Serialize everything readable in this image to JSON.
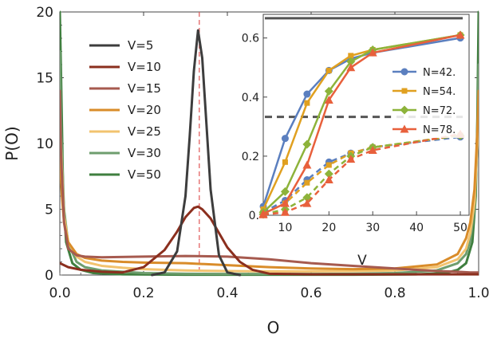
{
  "chart_data": [
    {
      "type": "line",
      "xlabel": "O",
      "ylabel": "P(O)",
      "xlim": [
        0,
        1
      ],
      "ylim": [
        0,
        20
      ],
      "xticks": [
        "0.0",
        "0.2",
        "0.4",
        "0.6",
        "0.8",
        "1.0"
      ],
      "yticks": [
        "0",
        "5",
        "10",
        "15",
        "20"
      ],
      "reference_line": {
        "x": 0.333,
        "style": "dashed",
        "color": "#e05555"
      },
      "legend_position": "top-left",
      "series": [
        {
          "name": "V=5",
          "color": "#3d3d3d",
          "x": [
            0.22,
            0.25,
            0.28,
            0.3,
            0.31,
            0.32,
            0.33,
            0.34,
            0.35,
            0.36,
            0.38,
            0.4,
            0.43
          ],
          "y": [
            0.0,
            0.2,
            1.8,
            6.0,
            10.5,
            15.5,
            18.6,
            16.5,
            11.5,
            6.5,
            1.5,
            0.2,
            0.0
          ]
        },
        {
          "name": "V=10",
          "color": "#8b2f1e",
          "x": [
            0.0,
            0.02,
            0.05,
            0.1,
            0.15,
            0.2,
            0.25,
            0.28,
            0.3,
            0.32,
            0.33,
            0.34,
            0.36,
            0.38,
            0.4,
            0.43,
            0.46,
            0.5,
            0.6,
            0.7,
            0.8,
            0.9,
            1.0
          ],
          "y": [
            0.9,
            0.6,
            0.4,
            0.25,
            0.2,
            0.6,
            1.9,
            3.3,
            4.4,
            5.1,
            5.2,
            5.0,
            4.3,
            3.2,
            2.1,
            1.0,
            0.4,
            0.1,
            0.05,
            0.05,
            0.05,
            0.05,
            0.05
          ]
        },
        {
          "name": "V=15",
          "color": "#a65a4f",
          "x": [
            0.0,
            0.003,
            0.01,
            0.02,
            0.04,
            0.06,
            0.1,
            0.2,
            0.3,
            0.4,
            0.5,
            0.6,
            0.7,
            0.8,
            0.9,
            0.95,
            0.98,
            1.0
          ],
          "y": [
            14.0,
            9.0,
            4.0,
            2.0,
            1.5,
            1.4,
            1.35,
            1.4,
            1.45,
            1.4,
            1.2,
            0.9,
            0.7,
            0.5,
            0.3,
            0.25,
            0.2,
            0.2
          ]
        },
        {
          "name": "V=20",
          "color": "#d98c2a",
          "x": [
            0.0,
            0.005,
            0.01,
            0.02,
            0.04,
            0.06,
            0.1,
            0.15,
            0.2,
            0.3,
            0.4,
            0.5,
            0.6,
            0.7,
            0.8,
            0.9,
            0.95,
            0.97,
            0.98,
            0.99,
            0.997,
            1.0
          ],
          "y": [
            9.0,
            6.0,
            4.0,
            2.5,
            1.6,
            1.3,
            1.1,
            1.0,
            0.95,
            0.9,
            0.75,
            0.6,
            0.5,
            0.45,
            0.5,
            0.8,
            1.6,
            2.8,
            4.0,
            6.5,
            11.0,
            14.0
          ]
        },
        {
          "name": "V=25",
          "color": "#f2c36f",
          "x": [
            0.0,
            0.005,
            0.01,
            0.02,
            0.04,
            0.06,
            0.1,
            0.15,
            0.2,
            0.3,
            0.4,
            0.5,
            0.6,
            0.7,
            0.8,
            0.9,
            0.95,
            0.97,
            0.98,
            0.99,
            0.997,
            1.0
          ],
          "y": [
            12.0,
            8.0,
            4.5,
            2.5,
            1.4,
            1.0,
            0.7,
            0.55,
            0.45,
            0.35,
            0.3,
            0.28,
            0.28,
            0.3,
            0.35,
            0.6,
            1.2,
            2.0,
            3.2,
            5.5,
            10.0,
            13.0
          ]
        },
        {
          "name": "V=30",
          "color": "#6e9e6e",
          "x": [
            0.0,
            0.003,
            0.01,
            0.02,
            0.04,
            0.06,
            0.1,
            0.2,
            0.3,
            0.4,
            0.5,
            0.6,
            0.7,
            0.8,
            0.9,
            0.95,
            0.97,
            0.98,
            0.99,
            0.997,
            1.0
          ],
          "y": [
            17.0,
            11.0,
            5.0,
            2.4,
            1.0,
            0.6,
            0.35,
            0.15,
            0.1,
            0.08,
            0.08,
            0.08,
            0.1,
            0.15,
            0.35,
            0.9,
            1.6,
            2.6,
            5.0,
            10.0,
            16.0
          ]
        },
        {
          "name": "V=50",
          "color": "#3f7f3f",
          "x": [
            0.0,
            0.003,
            0.008,
            0.015,
            0.03,
            0.05,
            0.08,
            0.15,
            0.3,
            0.5,
            0.7,
            0.85,
            0.92,
            0.95,
            0.97,
            0.985,
            0.993,
            0.997,
            1.0
          ],
          "y": [
            20.0,
            15.0,
            6.0,
            2.5,
            0.9,
            0.4,
            0.15,
            0.05,
            0.02,
            0.02,
            0.02,
            0.05,
            0.15,
            0.4,
            0.9,
            2.5,
            6.0,
            12.0,
            20.0
          ]
        }
      ]
    },
    {
      "type": "line",
      "role": "inset",
      "xlabel": "V",
      "ylabel": "",
      "xlim": [
        5,
        52
      ],
      "ylim": [
        0,
        0.68
      ],
      "xticks": [
        "10",
        "20",
        "30",
        "40",
        "50"
      ],
      "yticks": [
        "0.",
        "0.2",
        "0.4",
        "0.6"
      ],
      "reference_lines": [
        {
          "y": 0.667,
          "style": "solid",
          "color": "#555555"
        },
        {
          "y": 0.333,
          "style": "dashed",
          "color": "#555555"
        }
      ],
      "legend_position": "right",
      "x": [
        5,
        10,
        15,
        20,
        25,
        30,
        50
      ],
      "series": [
        {
          "name": "N=42.",
          "color": "#5b7fbf",
          "marker": "circle",
          "solid": [
            0.03,
            0.26,
            0.41,
            0.49,
            0.53,
            0.55,
            0.6
          ],
          "dashed": [
            0.01,
            0.05,
            0.12,
            0.18,
            0.21,
            0.23,
            0.265
          ]
        },
        {
          "name": "N=54.",
          "color": "#e0a020",
          "marker": "square",
          "solid": [
            0.02,
            0.18,
            0.38,
            0.49,
            0.54,
            0.56,
            0.61
          ],
          "dashed": [
            0.005,
            0.04,
            0.11,
            0.17,
            0.21,
            0.23,
            0.27
          ]
        },
        {
          "name": "N=72.",
          "color": "#8db33a",
          "marker": "diamond",
          "solid": [
            0.01,
            0.08,
            0.24,
            0.42,
            0.52,
            0.56,
            0.61
          ],
          "dashed": [
            0.003,
            0.02,
            0.06,
            0.14,
            0.2,
            0.23,
            0.27
          ]
        },
        {
          "name": "N=78.",
          "color": "#e8603c",
          "marker": "triangle",
          "solid": [
            0.005,
            0.04,
            0.17,
            0.39,
            0.5,
            0.55,
            0.61
          ],
          "dashed": [
            0.002,
            0.01,
            0.04,
            0.12,
            0.19,
            0.22,
            0.275
          ]
        }
      ]
    }
  ]
}
